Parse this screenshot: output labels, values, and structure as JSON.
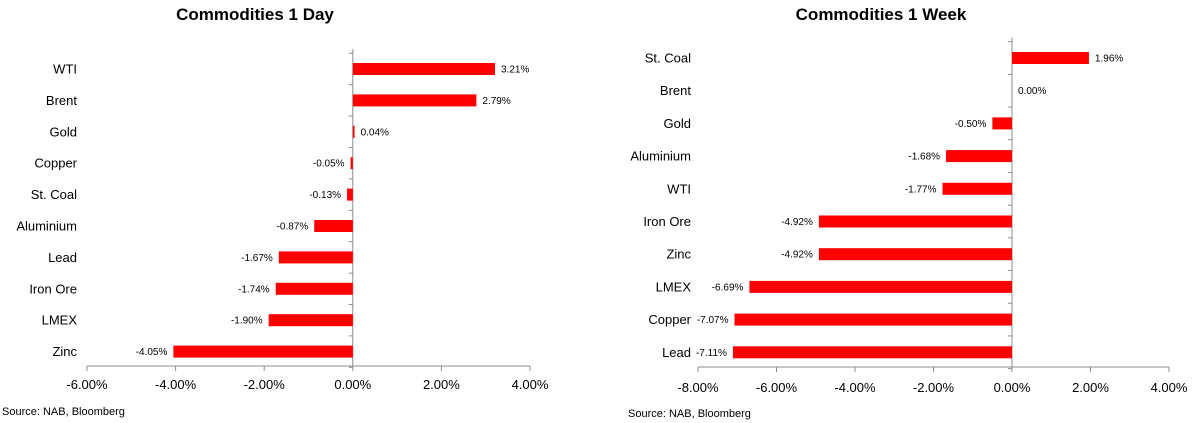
{
  "charts": [
    {
      "chart_data": {
        "type": "bar",
        "orientation": "horizontal",
        "title": "Commodities 1 Day",
        "categories": [
          "WTI",
          "Brent",
          "Gold",
          "Copper",
          "St. Coal",
          "Aluminium",
          "Lead",
          "Iron Ore",
          "LMEX",
          "Zinc"
        ],
        "values": [
          3.21,
          2.79,
          0.04,
          -0.05,
          -0.13,
          -0.87,
          -1.67,
          -1.74,
          -1.9,
          -4.05
        ],
        "data_labels": [
          "3.21%",
          "2.79%",
          "0.04%",
          "-0.05%",
          "-0.13%",
          "-0.87%",
          "-1.67%",
          "-1.74%",
          "-1.90%",
          "-4.05%"
        ],
        "xlim": [
          -6,
          4
        ],
        "xticks": [
          -6,
          -4,
          -2,
          0,
          2,
          4
        ],
        "xtick_labels": [
          "-6.00%",
          "-4.00%",
          "-2.00%",
          "0.00%",
          "2.00%",
          "4.00%"
        ],
        "grid": false,
        "bar_color": "#ff0000"
      },
      "source": "Source: NAB, Bloomberg"
    },
    {
      "chart_data": {
        "type": "bar",
        "orientation": "horizontal",
        "title": "Commodities 1 Week",
        "categories": [
          "St. Coal",
          "Brent",
          "Gold",
          "Aluminium",
          "WTI",
          "Iron Ore",
          "Zinc",
          "LMEX",
          "Copper",
          "Lead"
        ],
        "values": [
          1.96,
          0.0,
          -0.5,
          -1.68,
          -1.77,
          -4.92,
          -4.92,
          -6.69,
          -7.07,
          -7.11
        ],
        "data_labels": [
          "1.96%",
          "0.00%",
          "-0.50%",
          "-1.68%",
          "-1.77%",
          "-4.92%",
          "-4.92%",
          "-6.69%",
          "-7.07%",
          "-7.11%"
        ],
        "xlim": [
          -8,
          4
        ],
        "xticks": [
          -8,
          -6,
          -4,
          -2,
          0,
          2,
          4
        ],
        "xtick_labels": [
          "-8.00%",
          "-6.00%",
          "-4.00%",
          "-2.00%",
          "0.00%",
          "2.00%",
          "4.00%"
        ],
        "grid": false,
        "bar_color": "#ff0000"
      },
      "source": "Source: NAB, Bloomberg"
    }
  ]
}
